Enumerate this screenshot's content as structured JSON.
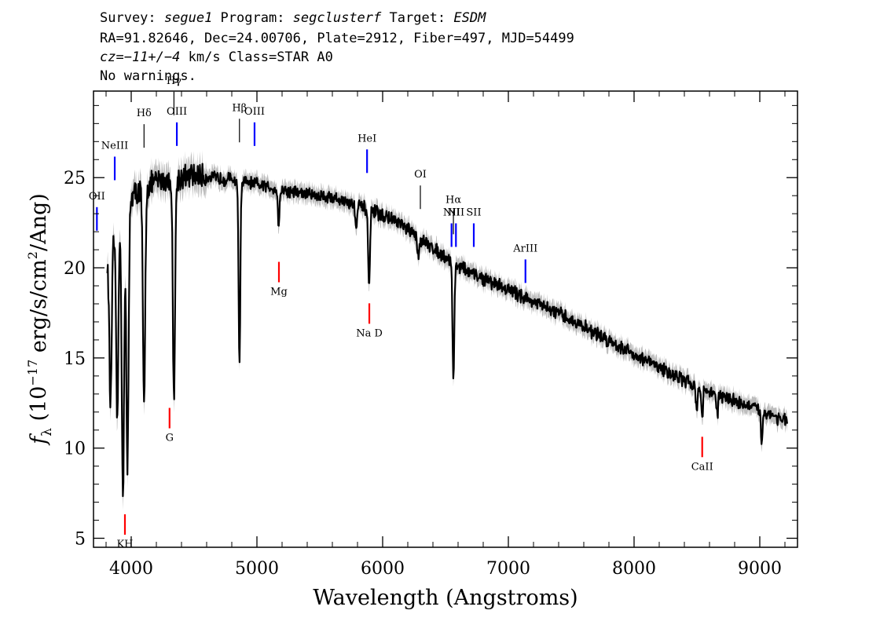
{
  "header": {
    "line1": {
      "survey_label": "Survey: ",
      "survey": "segue1",
      "program_label": " Program: ",
      "program": "segclusterf",
      "target_label": " Target: ",
      "target": "ESDM"
    },
    "line2": "RA=91.82646, Dec=24.00706, Plate=2912, Fiber=497, MJD=54499",
    "line3": {
      "cz_label": "cz=",
      "cz_value": "−11+/−4",
      "cz_units": " km/s Class=STAR A0"
    },
    "line4": "No warnings."
  },
  "chart_data": {
    "type": "line",
    "xlabel": "Wavelength (Angstroms)",
    "ylabel": {
      "symbol": "f",
      "sub": "λ",
      "pre": " (10",
      "exp1": "−17",
      "mid": " erg/s/cm",
      "exp2": "2",
      "post": "/Ang)"
    },
    "xlim": [
      3700,
      9300
    ],
    "ylim": [
      4.5,
      29.8
    ],
    "xticks": [
      4000,
      5000,
      6000,
      7000,
      8000,
      9000
    ],
    "yticks": [
      5,
      10,
      15,
      20,
      25
    ],
    "colors": {
      "spectrum": "#000000",
      "error": "#bdbdbd",
      "emission": "#0000ff",
      "absorption": "#ff0000",
      "hydrogen": "#000000"
    },
    "continuum": [
      [
        3800,
        20.0
      ],
      [
        3900,
        22.5
      ],
      [
        4000,
        24.0
      ],
      [
        4200,
        24.8
      ],
      [
        4500,
        25.1
      ],
      [
        4800,
        24.9
      ],
      [
        5000,
        24.6
      ],
      [
        5300,
        24.2
      ],
      [
        5600,
        23.9
      ],
      [
        5900,
        23.2
      ],
      [
        6100,
        22.6
      ],
      [
        6300,
        21.6
      ],
      [
        6500,
        20.6
      ],
      [
        6700,
        19.7
      ],
      [
        7000,
        18.8
      ],
      [
        7500,
        17.1
      ],
      [
        8000,
        15.2
      ],
      [
        8500,
        13.4
      ],
      [
        9000,
        12.1
      ],
      [
        9220,
        11.5
      ]
    ],
    "absorption_features": [
      [
        3835,
        12.4
      ],
      [
        3889,
        11.5
      ],
      [
        3934,
        7.2
      ],
      [
        3970,
        8.6
      ],
      [
        4102,
        12.2
      ],
      [
        4340,
        13.1
      ],
      [
        4861,
        14.9
      ],
      [
        5173,
        22.4
      ],
      [
        5790,
        22.3
      ],
      [
        5892,
        18.7
      ],
      [
        6283,
        20.6
      ],
      [
        6563,
        13.7
      ],
      [
        8498,
        12.1
      ],
      [
        8542,
        11.5
      ],
      [
        8662,
        11.8
      ],
      [
        9015,
        10.2
      ]
    ],
    "line_markers": [
      {
        "label": "OII",
        "wavelength": 3727,
        "color": "emission",
        "label_y": 23.8
      },
      {
        "label": "NeIII",
        "wavelength": 3869,
        "color": "emission",
        "label_y": 26.6
      },
      {
        "label": "KH",
        "wavelength": 3950,
        "color": "absorption",
        "label_y": 4.5
      },
      {
        "label": "Hδ",
        "wavelength": 4102,
        "color": "hydrogen",
        "label_y": 28.4
      },
      {
        "label": "G",
        "wavelength": 4305,
        "color": "absorption",
        "label_y": 10.4
      },
      {
        "label": "Hγ",
        "wavelength": 4340,
        "color": "hydrogen",
        "label_y": 30.2
      },
      {
        "label": "OIII",
        "wavelength": 4363,
        "color": "emission",
        "label_y": 28.5
      },
      {
        "label": "Hβ",
        "wavelength": 4861,
        "color": "hydrogen",
        "label_y": 28.7
      },
      {
        "label": "OIII",
        "wavelength": 4981,
        "color": "emission",
        "label_y": 28.5
      },
      {
        "label": "Mg",
        "wavelength": 5175,
        "color": "absorption",
        "label_y": 18.5
      },
      {
        "label": "HeI",
        "wavelength": 5876,
        "color": "emission",
        "label_y": 27.0
      },
      {
        "label": "Na D",
        "wavelength": 5894,
        "color": "absorption",
        "label_y": 16.2
      },
      {
        "label": "OI",
        "wavelength": 6300,
        "color": "hydrogen",
        "label_y": 25.0
      },
      {
        "label": "NII",
        "wavelength": 6548,
        "color": "emission",
        "label_y": 22.9
      },
      {
        "label": "Hα",
        "wavelength": 6563,
        "color": "hydrogen",
        "label_y": 23.6
      },
      {
        "label": "NII",
        "wavelength": 6583,
        "color": "emission",
        "label_y": 22.9
      },
      {
        "label": "SII",
        "wavelength": 6725,
        "color": "emission",
        "label_y": 22.9
      },
      {
        "label": "ArIII",
        "wavelength": 7136,
        "color": "emission",
        "label_y": 20.9
      },
      {
        "label": "CaII",
        "wavelength": 8542,
        "color": "absorption",
        "label_y": 8.8
      }
    ]
  }
}
